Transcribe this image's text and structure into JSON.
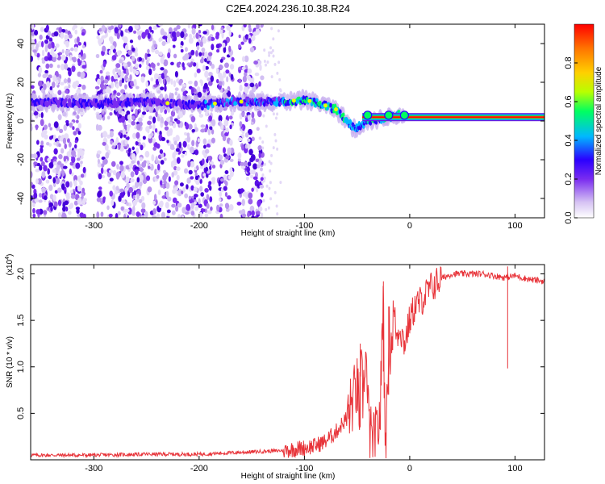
{
  "title": "C2E4.2024.236.10.38.R24",
  "colors": {
    "axis": "#000000",
    "snr_line": "#e8343a",
    "spectro_low": "#d9c6f5",
    "spectro_mid": "#6a1be0"
  },
  "colorbar": {
    "label": "Normalized spectral amplitude",
    "ticks": [
      "0.0",
      "0.2",
      "0.4",
      "0.6",
      "0.8"
    ],
    "tick_values": [
      0.0,
      0.2,
      0.4,
      0.6,
      0.8
    ],
    "range": [
      0,
      1
    ],
    "colors": [
      "#ffffff",
      "#d6c3f3",
      "#7a2cf0",
      "#2a00ff",
      "#00b8ff",
      "#00ff60",
      "#b8ff00",
      "#ffd000",
      "#ff7800",
      "#ff0000"
    ]
  },
  "chart_data": [
    {
      "type": "heatmap",
      "title": "C2E4.2024.236.10.38.R24",
      "xlabel": "Height of straight line (km)",
      "ylabel": "Frequency (Hz)",
      "xlim": [
        -360,
        128
      ],
      "ylim": [
        -50,
        50
      ],
      "x_ticks": [
        -300,
        -200,
        -100,
        0,
        100
      ],
      "x_tick_labels": [
        "-300",
        "-200",
        "-100",
        "0",
        "100"
      ],
      "y_ticks": [
        -40,
        -20,
        0,
        20,
        40
      ],
      "y_tick_labels": [
        "-40",
        "-20",
        "0",
        "20",
        "40"
      ],
      "ridge": {
        "x": [
          -360,
          -300,
          -250,
          -200,
          -170,
          -140,
          -120,
          -100,
          -85,
          -70,
          -60,
          -52,
          -45,
          -40,
          -30,
          -20,
          -10,
          0,
          20,
          60,
          100,
          128
        ],
        "y": [
          10,
          9,
          10,
          8,
          10,
          10,
          10,
          11,
          9,
          6,
          0,
          -4,
          -2,
          0,
          1,
          2,
          3,
          2,
          2,
          2,
          2,
          2
        ]
      },
      "noise_columns": {
        "x_start": [
          -360,
          -297,
          -183,
          -162
        ],
        "x_end": [
          -308,
          -186,
          -168,
          -140
        ]
      }
    },
    {
      "type": "line",
      "xlabel": "Height of straight line (km)",
      "ylabel": "SNR (10 * v/v)",
      "y_multiplier_label": "(x10",
      "y_multiplier_exponent": "4",
      "y_multiplier_close": ")",
      "xlim": [
        -360,
        128
      ],
      "ylim": [
        0,
        21000
      ],
      "x_ticks": [
        -300,
        -200,
        -100,
        0,
        100
      ],
      "x_tick_labels": [
        "-300",
        "-200",
        "-100",
        "0",
        "100"
      ],
      "y_ticks": [
        5000,
        10000,
        15000,
        20000
      ],
      "y_tick_labels": [
        "0.5",
        "1.0",
        "1.5",
        "2.0"
      ],
      "series": [
        {
          "x": [
            -360,
            -300,
            -250,
            -200,
            -180,
            -160,
            -140,
            -120,
            -100,
            -90,
            -80,
            -70,
            -60,
            -55,
            -50,
            -48,
            -46,
            -44,
            -42,
            -40,
            -38,
            -35,
            -32,
            -30,
            -28,
            -26,
            -25,
            -24,
            -22,
            -20,
            -18,
            -15,
            -12,
            -10,
            -5,
            0,
            5,
            10,
            20,
            30,
            40,
            50,
            60,
            70,
            80,
            90,
            95,
            100,
            110,
            120,
            128
          ],
          "y": [
            500,
            500,
            600,
            600,
            700,
            800,
            900,
            1000,
            1300,
            1500,
            2000,
            3000,
            4500,
            6000,
            8000,
            5000,
            9000,
            6500,
            12500,
            6000,
            3000,
            1500,
            2500,
            3500,
            5000,
            14000,
            19000,
            6000,
            2500,
            14000,
            12000,
            16000,
            13000,
            14500,
            12500,
            15000,
            16500,
            17000,
            18500,
            19500,
            20000,
            20000,
            20000,
            20000,
            19800,
            19600,
            19700,
            19800,
            19500,
            19300,
            19200
          ]
        }
      ]
    }
  ]
}
